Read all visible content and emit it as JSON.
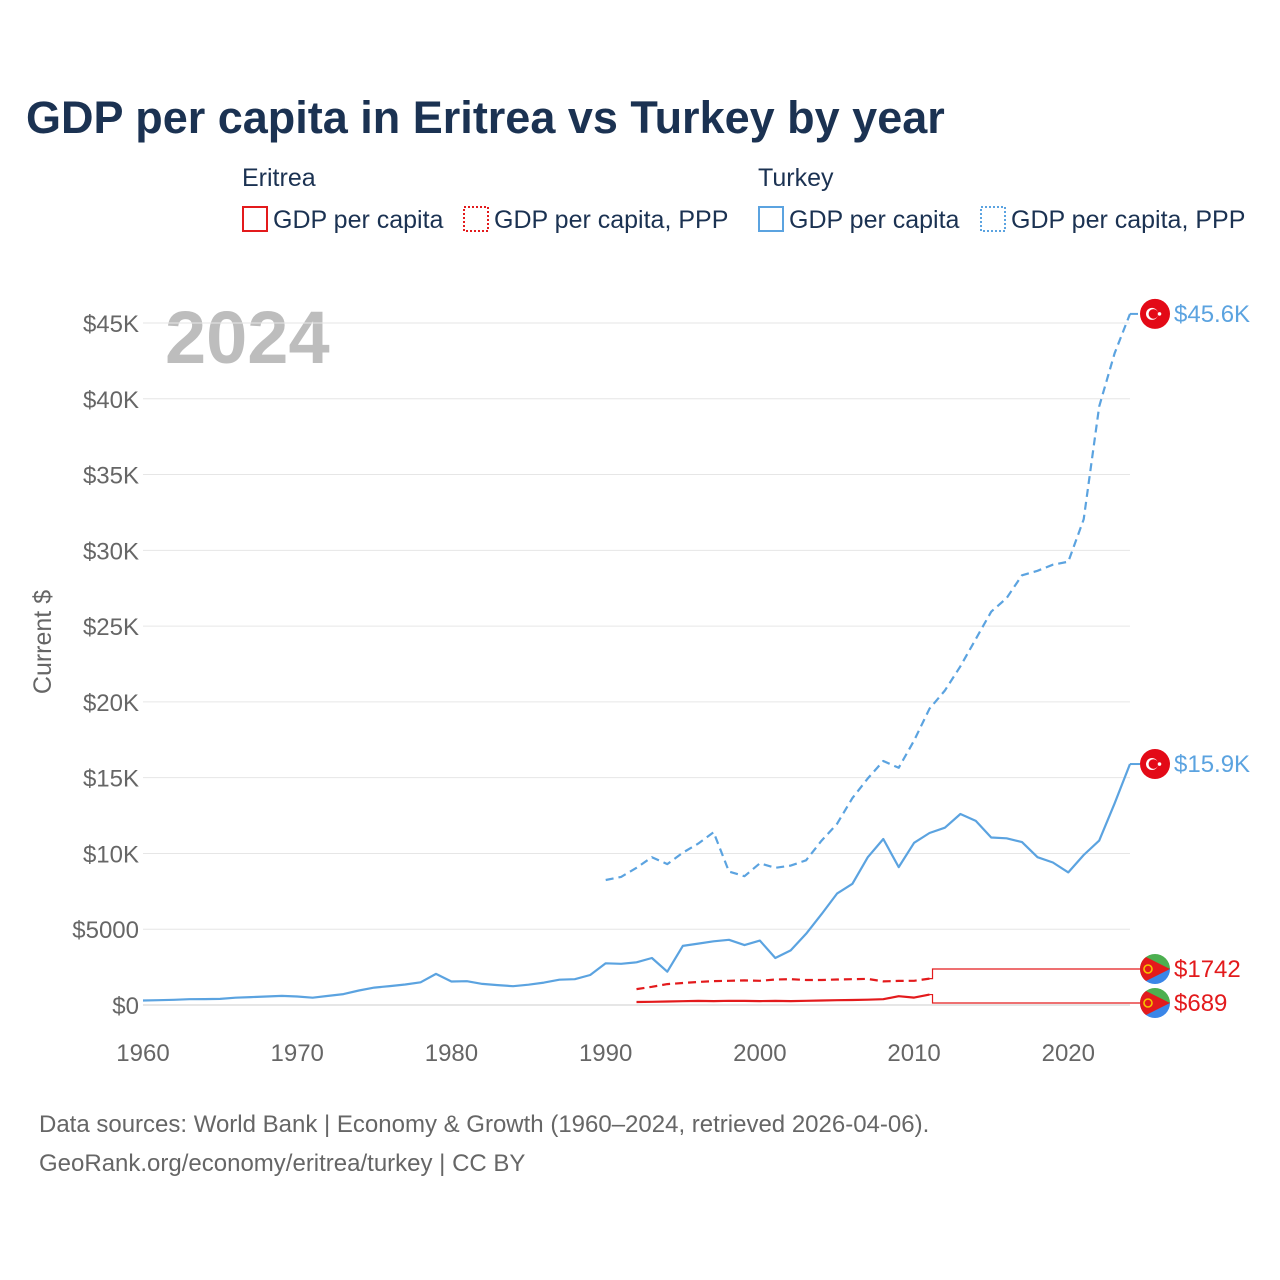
{
  "title": "GDP per capita in Eritrea vs Turkey by year",
  "year_watermark": "2024",
  "legend": {
    "groups": [
      {
        "name": "Eritrea",
        "color": "#e31a1c",
        "items": [
          "GDP per capita",
          "GDP per capita, PPP"
        ]
      },
      {
        "name": "Turkey",
        "color": "#5ba3e0",
        "items": [
          "GDP per capita",
          "GDP per capita, PPP"
        ]
      }
    ]
  },
  "source": {
    "line1": "Data sources: World Bank | Economy & Growth (1960–2024, retrieved 2026-04-06).",
    "line2": "GeoRank.org/economy/eritrea/turkey | CC BY"
  },
  "chart_data": {
    "type": "line",
    "title": "GDP per capita in Eritrea vs Turkey by year",
    "xlabel": "",
    "ylabel": "Current $",
    "xlim": [
      1960,
      2025
    ],
    "ylim": [
      0,
      47000
    ],
    "x_ticks": [
      1960,
      1970,
      1980,
      1990,
      2000,
      2010,
      2020
    ],
    "x_tick_labels": [
      "1960",
      "1970",
      "1980",
      "1990",
      "2000",
      "2010",
      "2020"
    ],
    "y_ticks": [
      0,
      5000,
      10000,
      15000,
      20000,
      25000,
      30000,
      35000,
      40000,
      45000
    ],
    "y_tick_labels": [
      "$0",
      "$5000",
      "$10K",
      "$15K",
      "$20K",
      "$25K",
      "$30K",
      "$35K",
      "$40K",
      "$45K"
    ],
    "grid": true,
    "series": [
      {
        "name": "Turkey GDP per capita",
        "country": "Turkey",
        "style": "solid",
        "color": "#5ba3e0",
        "end_label": "$15.9K",
        "x": [
          1960,
          1961,
          1962,
          1963,
          1964,
          1965,
          1966,
          1967,
          1968,
          1969,
          1970,
          1971,
          1972,
          1973,
          1974,
          1975,
          1976,
          1977,
          1978,
          1979,
          1980,
          1981,
          1982,
          1983,
          1984,
          1985,
          1986,
          1987,
          1988,
          1989,
          1990,
          1991,
          1992,
          1993,
          1994,
          1995,
          1996,
          1997,
          1998,
          1999,
          2000,
          2001,
          2002,
          2003,
          2004,
          2005,
          2006,
          2007,
          2008,
          2009,
          2010,
          2011,
          2012,
          2013,
          2014,
          2015,
          2016,
          2017,
          2018,
          2019,
          2020,
          2021,
          2022,
          2023,
          2024
        ],
        "y": [
          300,
          320,
          340,
          380,
          390,
          400,
          480,
          520,
          560,
          600,
          560,
          480,
          600,
          720,
          960,
          1150,
          1250,
          1350,
          1500,
          2050,
          1550,
          1570,
          1390,
          1310,
          1240,
          1340,
          1480,
          1670,
          1700,
          1980,
          2750,
          2720,
          2820,
          3100,
          2200,
          3900,
          4050,
          4200,
          4300,
          3950,
          4250,
          3100,
          3600,
          4700,
          6000,
          7350,
          8000,
          9750,
          10950,
          9100,
          10700,
          11350,
          11700,
          12600,
          12150,
          11050,
          11000,
          10750,
          9750,
          9400,
          8750,
          9900,
          10850,
          13300,
          15900
        ]
      },
      {
        "name": "Turkey GDP per capita, PPP",
        "country": "Turkey",
        "style": "dashed",
        "color": "#5ba3e0",
        "end_label": "$45.6K",
        "x": [
          1990,
          1991,
          1992,
          1993,
          1994,
          1995,
          1996,
          1997,
          1998,
          1999,
          2000,
          2001,
          2002,
          2003,
          2004,
          2005,
          2006,
          2007,
          2008,
          2009,
          2010,
          2011,
          2012,
          2013,
          2014,
          2015,
          2016,
          2017,
          2018,
          2019,
          2020,
          2021,
          2022,
          2023,
          2024
        ],
        "y": [
          8250,
          8450,
          9050,
          9750,
          9300,
          10050,
          10650,
          11400,
          8800,
          8500,
          9350,
          9050,
          9200,
          9550,
          10850,
          11950,
          13650,
          14950,
          16100,
          15650,
          17450,
          19550,
          20750,
          22350,
          24150,
          25950,
          26850,
          28350,
          28650,
          29050,
          29250,
          32050,
          39500,
          43000,
          45600
        ]
      },
      {
        "name": "Eritrea GDP per capita",
        "country": "Eritrea",
        "style": "solid",
        "color": "#e31a1c",
        "end_label": "$689",
        "x": [
          1992,
          1993,
          1994,
          1995,
          1996,
          1997,
          1998,
          1999,
          2000,
          2001,
          2002,
          2003,
          2004,
          2005,
          2006,
          2007,
          2008,
          2009,
          2010,
          2011
        ],
        "y": [
          200,
          210,
          230,
          250,
          270,
          260,
          280,
          270,
          260,
          270,
          260,
          280,
          300,
          320,
          330,
          350,
          380,
          580,
          490,
          689
        ]
      },
      {
        "name": "Eritrea GDP per capita, PPP",
        "country": "Eritrea",
        "style": "dashed",
        "color": "#e31a1c",
        "end_label": "$1742",
        "x": [
          1992,
          1993,
          1994,
          1995,
          1996,
          1997,
          1998,
          1999,
          2000,
          2001,
          2002,
          2003,
          2004,
          2005,
          2006,
          2007,
          2008,
          2009,
          2010,
          2011
        ],
        "y": [
          1050,
          1200,
          1380,
          1450,
          1520,
          1580,
          1600,
          1620,
          1600,
          1680,
          1700,
          1650,
          1650,
          1680,
          1700,
          1720,
          1560,
          1590,
          1600,
          1742
        ]
      }
    ]
  }
}
